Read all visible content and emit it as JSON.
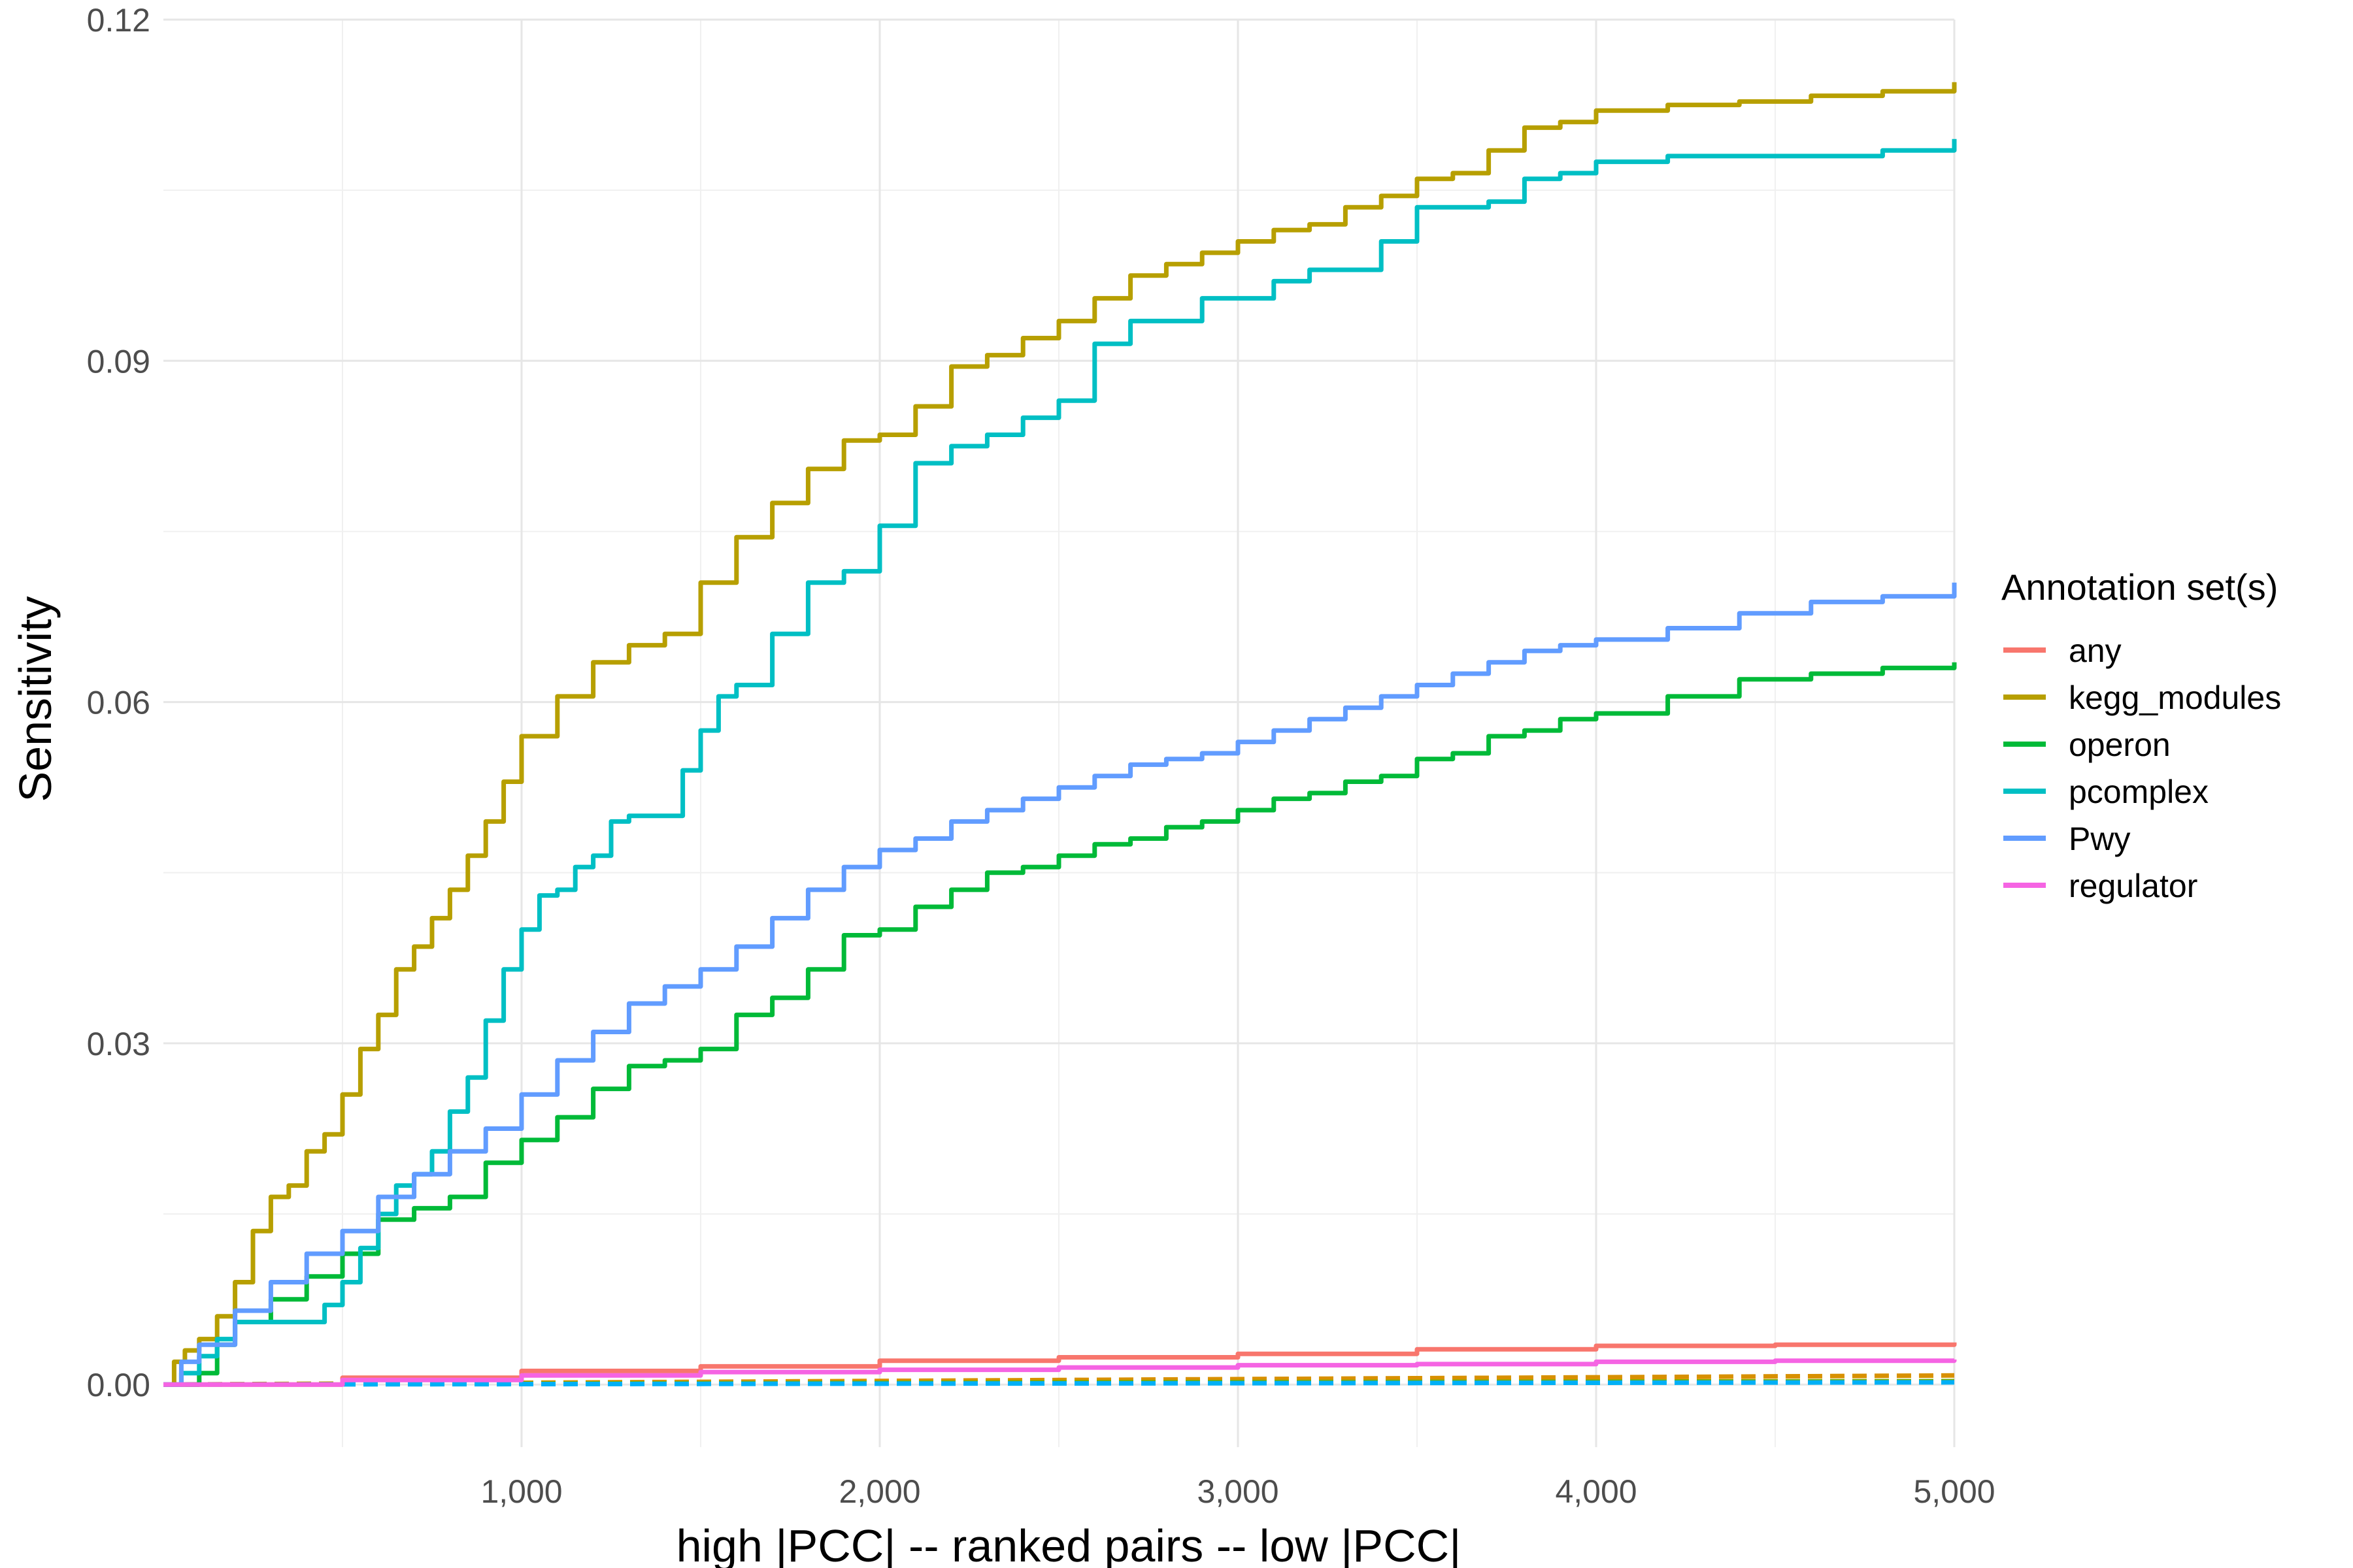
{
  "chart_data": {
    "type": "line",
    "title": "",
    "xlabel": "high |PCC| -- ranked pairs -- low |PCC|",
    "ylabel": "Sensitivity",
    "xlim": [
      0,
      5000
    ],
    "ylim": [
      -0.0055,
      0.12
    ],
    "x_ticks": [
      1000,
      2000,
      3000,
      4000,
      5000
    ],
    "x_tick_labels": [
      "1,000",
      "2,000",
      "3,000",
      "4,000",
      "5,000"
    ],
    "y_ticks": [
      0.0,
      0.03,
      0.06,
      0.09,
      0.12
    ],
    "y_tick_labels": [
      "0.00",
      "0.03",
      "0.06",
      "0.09",
      "0.12"
    ],
    "grid": true,
    "legend": {
      "title": "Annotation set(s)",
      "position": "right"
    },
    "series": [
      {
        "name": "any",
        "color": "#F8766D",
        "style": "solid",
        "points": [
          [
            0,
            0
          ],
          [
            500,
            0.0006
          ],
          [
            1000,
            0.0012
          ],
          [
            1500,
            0.0016
          ],
          [
            2000,
            0.0021
          ],
          [
            2500,
            0.0024
          ],
          [
            3000,
            0.0027
          ],
          [
            3500,
            0.0031
          ],
          [
            4000,
            0.0034
          ],
          [
            4500,
            0.0035
          ],
          [
            5000,
            0.0037
          ]
        ]
      },
      {
        "name": "kegg_modules",
        "color": "#B79F00",
        "style": "solid",
        "points": [
          [
            0,
            0
          ],
          [
            30,
            0.002
          ],
          [
            60,
            0.003
          ],
          [
            100,
            0.004
          ],
          [
            150,
            0.006
          ],
          [
            200,
            0.009
          ],
          [
            250,
            0.0135
          ],
          [
            300,
            0.0165
          ],
          [
            350,
            0.0175
          ],
          [
            400,
            0.0205
          ],
          [
            450,
            0.022
          ],
          [
            500,
            0.0255
          ],
          [
            550,
            0.0295
          ],
          [
            600,
            0.0325
          ],
          [
            650,
            0.0365
          ],
          [
            700,
            0.0385
          ],
          [
            750,
            0.041
          ],
          [
            800,
            0.0435
          ],
          [
            850,
            0.0465
          ],
          [
            900,
            0.0495
          ],
          [
            950,
            0.053
          ],
          [
            1000,
            0.057
          ],
          [
            1100,
            0.0605
          ],
          [
            1200,
            0.0635
          ],
          [
            1300,
            0.065
          ],
          [
            1400,
            0.066
          ],
          [
            1500,
            0.0705
          ],
          [
            1600,
            0.0745
          ],
          [
            1700,
            0.0775
          ],
          [
            1800,
            0.0805
          ],
          [
            1900,
            0.083
          ],
          [
            2000,
            0.0835
          ],
          [
            2100,
            0.086
          ],
          [
            2200,
            0.0895
          ],
          [
            2300,
            0.0905
          ],
          [
            2400,
            0.092
          ],
          [
            2500,
            0.0935
          ],
          [
            2600,
            0.0955
          ],
          [
            2700,
            0.0975
          ],
          [
            2800,
            0.0985
          ],
          [
            2900,
            0.0995
          ],
          [
            3000,
            0.1005
          ],
          [
            3100,
            0.1015
          ],
          [
            3200,
            0.102
          ],
          [
            3300,
            0.1035
          ],
          [
            3400,
            0.1045
          ],
          [
            3500,
            0.106
          ],
          [
            3600,
            0.1065
          ],
          [
            3700,
            0.1085
          ],
          [
            3800,
            0.1105
          ],
          [
            3900,
            0.111
          ],
          [
            4000,
            0.112
          ],
          [
            4200,
            0.1125
          ],
          [
            4400,
            0.1128
          ],
          [
            4600,
            0.1133
          ],
          [
            4800,
            0.1137
          ],
          [
            5000,
            0.1145
          ]
        ]
      },
      {
        "name": "operon",
        "color": "#00BA38",
        "style": "solid",
        "points": [
          [
            0,
            0
          ],
          [
            100,
            0.001
          ],
          [
            150,
            0.0035
          ],
          [
            200,
            0.0055
          ],
          [
            300,
            0.0075
          ],
          [
            400,
            0.0095
          ],
          [
            500,
            0.0115
          ],
          [
            600,
            0.0145
          ],
          [
            700,
            0.0155
          ],
          [
            800,
            0.0165
          ],
          [
            900,
            0.0195
          ],
          [
            1000,
            0.0215
          ],
          [
            1100,
            0.0235
          ],
          [
            1200,
            0.026
          ],
          [
            1300,
            0.028
          ],
          [
            1400,
            0.0285
          ],
          [
            1500,
            0.0295
          ],
          [
            1600,
            0.0325
          ],
          [
            1700,
            0.034
          ],
          [
            1800,
            0.0365
          ],
          [
            1900,
            0.0395
          ],
          [
            2000,
            0.04
          ],
          [
            2100,
            0.042
          ],
          [
            2200,
            0.0435
          ],
          [
            2300,
            0.045
          ],
          [
            2400,
            0.0455
          ],
          [
            2500,
            0.0465
          ],
          [
            2600,
            0.0475
          ],
          [
            2700,
            0.048
          ],
          [
            2800,
            0.049
          ],
          [
            2900,
            0.0495
          ],
          [
            3000,
            0.0505
          ],
          [
            3100,
            0.0515
          ],
          [
            3200,
            0.052
          ],
          [
            3300,
            0.053
          ],
          [
            3400,
            0.0535
          ],
          [
            3500,
            0.055
          ],
          [
            3600,
            0.0555
          ],
          [
            3700,
            0.057
          ],
          [
            3800,
            0.0575
          ],
          [
            3900,
            0.0585
          ],
          [
            4000,
            0.059
          ],
          [
            4200,
            0.0605
          ],
          [
            4400,
            0.062
          ],
          [
            4600,
            0.0625
          ],
          [
            4800,
            0.063
          ],
          [
            5000,
            0.0635
          ]
        ]
      },
      {
        "name": "pcomplex",
        "color": "#00BFC4",
        "style": "solid",
        "points": [
          [
            0,
            0
          ],
          [
            50,
            0.001
          ],
          [
            100,
            0.0025
          ],
          [
            150,
            0.004
          ],
          [
            200,
            0.0055
          ],
          [
            300,
            0.0055
          ],
          [
            400,
            0.0055
          ],
          [
            450,
            0.007
          ],
          [
            500,
            0.009
          ],
          [
            550,
            0.012
          ],
          [
            600,
            0.015
          ],
          [
            650,
            0.0175
          ],
          [
            700,
            0.0185
          ],
          [
            750,
            0.0205
          ],
          [
            800,
            0.024
          ],
          [
            850,
            0.027
          ],
          [
            900,
            0.032
          ],
          [
            950,
            0.0365
          ],
          [
            1000,
            0.04
          ],
          [
            1050,
            0.043
          ],
          [
            1100,
            0.0435
          ],
          [
            1150,
            0.0455
          ],
          [
            1200,
            0.0465
          ],
          [
            1250,
            0.0495
          ],
          [
            1300,
            0.05
          ],
          [
            1400,
            0.05
          ],
          [
            1450,
            0.054
          ],
          [
            1500,
            0.0575
          ],
          [
            1550,
            0.0605
          ],
          [
            1600,
            0.0615
          ],
          [
            1700,
            0.066
          ],
          [
            1800,
            0.0705
          ],
          [
            1900,
            0.0715
          ],
          [
            2000,
            0.0755
          ],
          [
            2100,
            0.081
          ],
          [
            2200,
            0.0825
          ],
          [
            2300,
            0.0835
          ],
          [
            2400,
            0.085
          ],
          [
            2500,
            0.0865
          ],
          [
            2600,
            0.0915
          ],
          [
            2700,
            0.0935
          ],
          [
            2800,
            0.0935
          ],
          [
            2900,
            0.0955
          ],
          [
            3000,
            0.0955
          ],
          [
            3100,
            0.097
          ],
          [
            3200,
            0.098
          ],
          [
            3300,
            0.098
          ],
          [
            3400,
            0.1005
          ],
          [
            3500,
            0.1035
          ],
          [
            3600,
            0.1035
          ],
          [
            3700,
            0.104
          ],
          [
            3800,
            0.106
          ],
          [
            3900,
            0.1065
          ],
          [
            4000,
            0.1075
          ],
          [
            4200,
            0.108
          ],
          [
            4400,
            0.108
          ],
          [
            4600,
            0.108
          ],
          [
            4800,
            0.1085
          ],
          [
            5000,
            0.1095
          ]
        ]
      },
      {
        "name": "Pwy",
        "color": "#619CFF",
        "style": "solid",
        "points": [
          [
            0,
            0
          ],
          [
            50,
            0.002
          ],
          [
            100,
            0.0035
          ],
          [
            200,
            0.0065
          ],
          [
            300,
            0.009
          ],
          [
            400,
            0.0115
          ],
          [
            500,
            0.0135
          ],
          [
            600,
            0.0165
          ],
          [
            700,
            0.0185
          ],
          [
            800,
            0.0205
          ],
          [
            900,
            0.0225
          ],
          [
            1000,
            0.0255
          ],
          [
            1100,
            0.0285
          ],
          [
            1200,
            0.031
          ],
          [
            1300,
            0.0335
          ],
          [
            1400,
            0.035
          ],
          [
            1500,
            0.0365
          ],
          [
            1600,
            0.0385
          ],
          [
            1700,
            0.041
          ],
          [
            1800,
            0.0435
          ],
          [
            1900,
            0.0455
          ],
          [
            2000,
            0.047
          ],
          [
            2100,
            0.048
          ],
          [
            2200,
            0.0495
          ],
          [
            2300,
            0.0505
          ],
          [
            2400,
            0.0515
          ],
          [
            2500,
            0.0525
          ],
          [
            2600,
            0.0535
          ],
          [
            2700,
            0.0545
          ],
          [
            2800,
            0.055
          ],
          [
            2900,
            0.0555
          ],
          [
            3000,
            0.0565
          ],
          [
            3100,
            0.0575
          ],
          [
            3200,
            0.0585
          ],
          [
            3300,
            0.0595
          ],
          [
            3400,
            0.0605
          ],
          [
            3500,
            0.0615
          ],
          [
            3600,
            0.0625
          ],
          [
            3700,
            0.0635
          ],
          [
            3800,
            0.0645
          ],
          [
            3900,
            0.065
          ],
          [
            4000,
            0.0655
          ],
          [
            4200,
            0.0665
          ],
          [
            4400,
            0.0678
          ],
          [
            4600,
            0.0688
          ],
          [
            4800,
            0.0693
          ],
          [
            5000,
            0.0705
          ]
        ]
      },
      {
        "name": "regulator",
        "color": "#F564E3",
        "style": "solid",
        "points": [
          [
            0,
            0
          ],
          [
            500,
            0.0004
          ],
          [
            1000,
            0.0008
          ],
          [
            1500,
            0.0011
          ],
          [
            2000,
            0.0013
          ],
          [
            2500,
            0.0015
          ],
          [
            3000,
            0.0017
          ],
          [
            3500,
            0.0018
          ],
          [
            4000,
            0.002
          ],
          [
            4500,
            0.0021
          ],
          [
            5000,
            0.0022
          ]
        ]
      },
      {
        "name": "",
        "color": "#D89000",
        "style": "dashed",
        "points": [
          [
            0,
            0
          ],
          [
            2500,
            0.0004
          ],
          [
            5000,
            0.0008
          ]
        ]
      },
      {
        "name": "",
        "color": "#7CAE00",
        "style": "dashed",
        "points": [
          [
            0,
            0
          ],
          [
            2500,
            0.0002
          ],
          [
            5000,
            0.0003
          ]
        ]
      },
      {
        "name": "",
        "color": "#00B0F6",
        "style": "dashed",
        "points": [
          [
            0,
            0
          ],
          [
            2500,
            0.0001
          ],
          [
            5000,
            0.0002
          ]
        ]
      }
    ]
  }
}
